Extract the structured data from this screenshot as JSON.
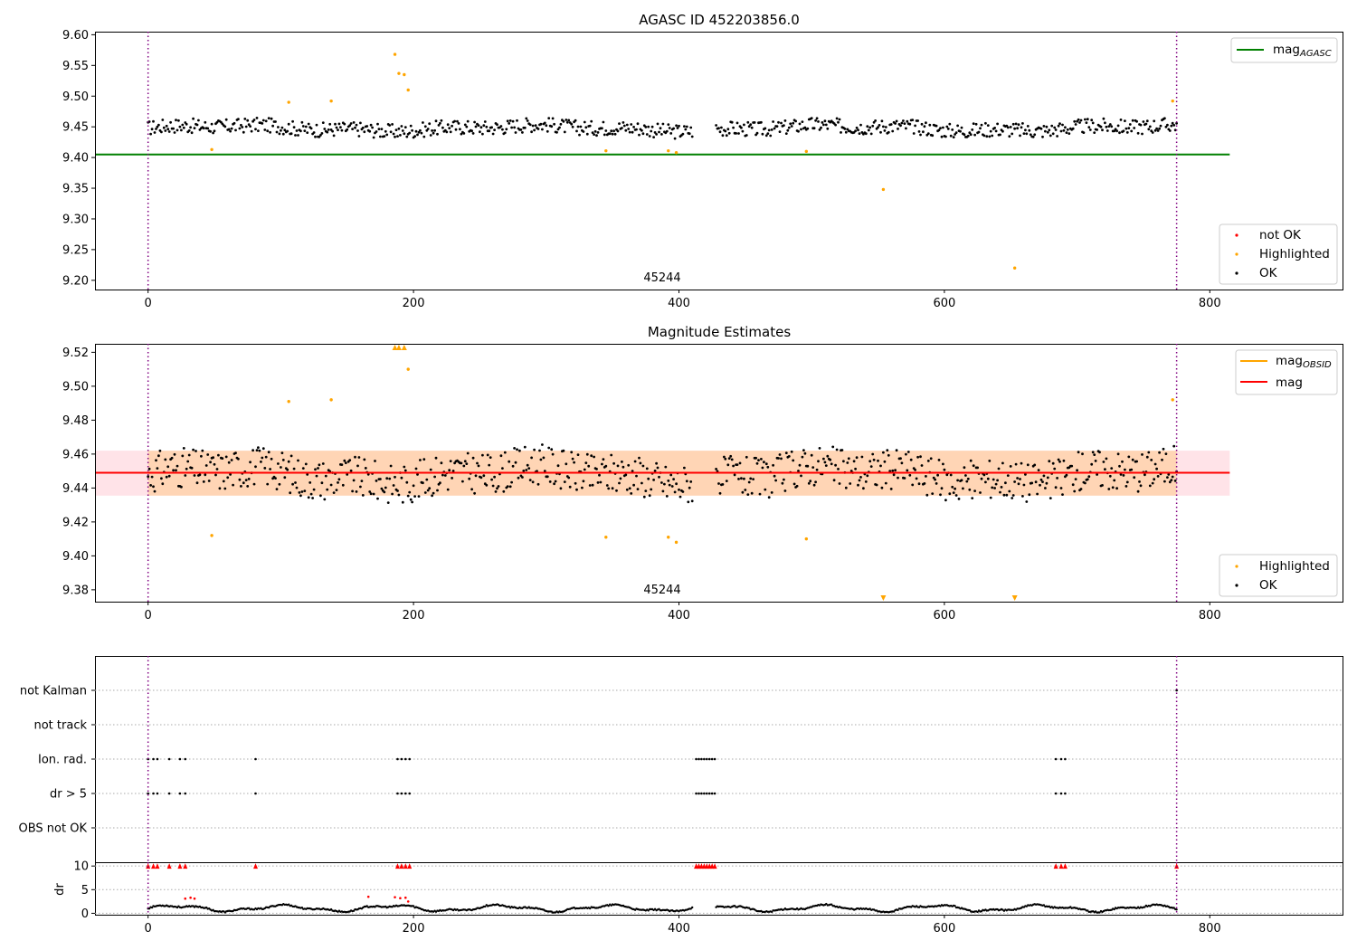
{
  "chart_data": [
    {
      "type": "scatter",
      "title": "AGASC ID 452203856.0",
      "xlabel": "",
      "ylabel": "",
      "xlim": [
        -40,
        900
      ],
      "ylim": [
        9.185,
        9.605
      ],
      "xticks": [
        "0",
        "200",
        "400",
        "600",
        "800"
      ],
      "yticks": [
        "9.20",
        "9.25",
        "9.30",
        "9.35",
        "9.40",
        "9.45",
        "9.50",
        "9.55",
        "9.60"
      ],
      "annotation": "45244",
      "obs_boundaries_x": [
        0,
        775
      ],
      "hline": {
        "name": "mag",
        "sub": "AGASC",
        "y": 9.405,
        "color": "#008000",
        "x_range": [
          -40,
          815
        ]
      },
      "legend_lines": [
        {
          "name": "mag",
          "sub": "AGASC",
          "color": "#008000"
        }
      ],
      "legend_points": [
        {
          "name": "not OK",
          "color": "#ff0000"
        },
        {
          "name": "Highlighted",
          "color": "#ffa500"
        },
        {
          "name": "OK",
          "color": "#000000"
        }
      ],
      "band_ok": {
        "x_start": 0,
        "x_end": 775,
        "gap": [
          410,
          428
        ],
        "base": 9.448,
        "amp": 0.012
      },
      "highlighted": [
        [
          48,
          9.413
        ],
        [
          106,
          9.49
        ],
        [
          138,
          9.492
        ],
        [
          186,
          9.568
        ],
        [
          189,
          9.537
        ],
        [
          193,
          9.535
        ],
        [
          196,
          9.51
        ],
        [
          345,
          9.411
        ],
        [
          392,
          9.411
        ],
        [
          398,
          9.408
        ],
        [
          496,
          9.41
        ],
        [
          554,
          9.348
        ],
        [
          653,
          9.22
        ],
        [
          772,
          9.492
        ]
      ]
    },
    {
      "type": "scatter",
      "title": "Magnitude Estimates",
      "xlabel": "",
      "ylabel": "",
      "xlim": [
        -40,
        900
      ],
      "ylim": [
        9.373,
        9.525
      ],
      "xticks": [
        "0",
        "200",
        "400",
        "600",
        "800"
      ],
      "yticks": [
        "9.38",
        "9.40",
        "9.42",
        "9.44",
        "9.46",
        "9.48",
        "9.50",
        "9.52"
      ],
      "annotation": "45244",
      "obs_boundaries_x": [
        0,
        775
      ],
      "hline": {
        "name": "mag",
        "y": 9.449,
        "color": "#ff0000",
        "x_range": [
          -40,
          815
        ]
      },
      "obsid_band": {
        "y_low": 9.4355,
        "y_high": 9.462,
        "x_range": [
          -40,
          815
        ],
        "color": "#ffc0cb"
      },
      "mag_band": {
        "y_low": 9.4355,
        "y_high": 9.462,
        "x_range": [
          0,
          775
        ],
        "color": "#ffa500"
      },
      "legend_lines": [
        {
          "name": "mag",
          "sub": "OBSID",
          "color": "#ffa500"
        },
        {
          "name": "mag",
          "color": "#ff0000"
        }
      ],
      "legend_points": [
        {
          "name": "Highlighted",
          "color": "#ffa500"
        },
        {
          "name": "OK",
          "color": "#000000"
        }
      ],
      "band_ok": {
        "x_start": 0,
        "x_end": 775,
        "gap": [
          410,
          428
        ],
        "base": 9.448,
        "amp": 0.012
      },
      "highlighted": [
        [
          48,
          9.412
        ],
        [
          106,
          9.491
        ],
        [
          138,
          9.492
        ],
        [
          196,
          9.51
        ],
        [
          345,
          9.411
        ],
        [
          392,
          9.411
        ],
        [
          398,
          9.408
        ],
        [
          496,
          9.41
        ],
        [
          772,
          9.492
        ]
      ],
      "clipped_high": [
        [
          186,
          9.523
        ],
        [
          189,
          9.523
        ],
        [
          193,
          9.523
        ]
      ],
      "clipped_low": [
        [
          554,
          9.375
        ],
        [
          653,
          9.375
        ]
      ]
    },
    {
      "type": "scatter",
      "title": "",
      "xlim": [
        -40,
        900
      ],
      "categories": [
        "not Kalman",
        "not track",
        "Ion. rad.",
        "dr > 5",
        "OBS not OK"
      ],
      "obs_boundaries_x": [
        0,
        775
      ],
      "flag_x": {
        "not Kalman": [
          775
        ],
        "not track": [],
        "Ion. rad.": [
          0,
          4,
          7,
          16,
          24,
          28,
          81,
          188,
          191,
          194,
          197,
          413,
          415,
          417,
          419,
          421,
          423,
          425,
          427,
          684,
          688,
          691
        ],
        "dr > 5": [
          0,
          4,
          7,
          16,
          24,
          28,
          81,
          188,
          191,
          194,
          197,
          413,
          415,
          417,
          419,
          421,
          423,
          425,
          427,
          684,
          688,
          691
        ],
        "OBS not OK": []
      }
    },
    {
      "type": "scatter",
      "title": "",
      "xlabel": "",
      "ylabel": "dr",
      "xlim": [
        -40,
        900
      ],
      "ylim": [
        -0.3,
        10.8
      ],
      "xticks": [
        "0",
        "200",
        "400",
        "600",
        "800"
      ],
      "yticks": [
        "0",
        "5",
        "10"
      ],
      "obs_boundaries_x": [
        0,
        775
      ],
      "clipped_top_x": [
        0,
        4,
        7,
        16,
        24,
        28,
        81,
        188,
        191,
        194,
        197,
        413,
        415,
        417,
        419,
        421,
        423,
        425,
        427,
        684,
        688,
        691,
        775
      ],
      "outliers": [
        [
          28,
          3.1
        ],
        [
          32,
          3.3
        ],
        [
          35,
          3.1
        ],
        [
          166,
          3.5
        ],
        [
          186,
          3.4
        ],
        [
          190,
          3.2
        ],
        [
          194,
          3.3
        ],
        [
          196,
          2.5
        ]
      ]
    }
  ]
}
